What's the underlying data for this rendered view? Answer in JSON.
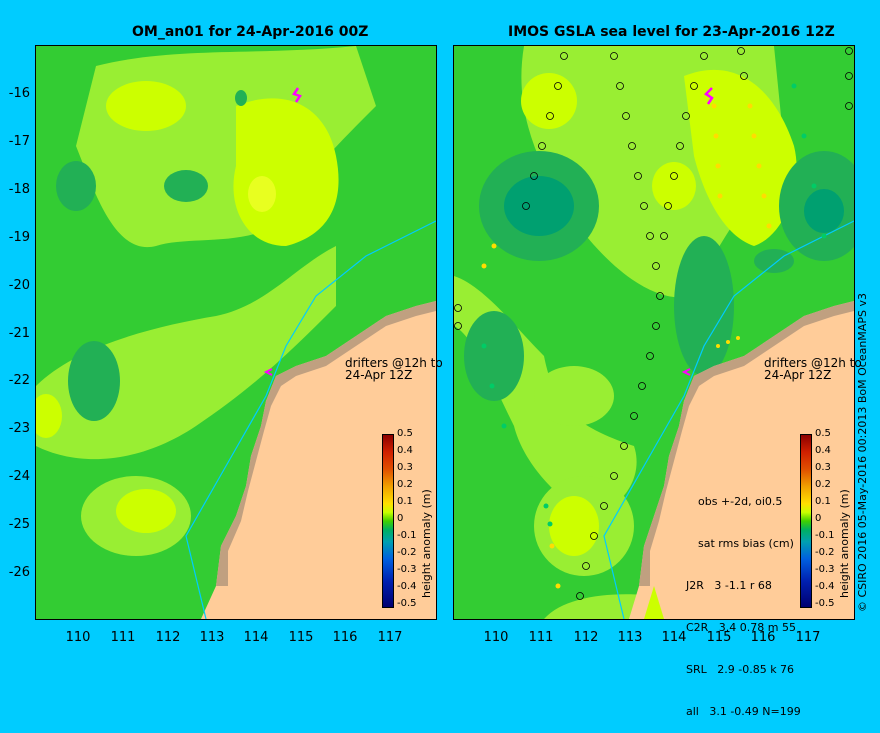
{
  "left_panel": {
    "title": "OM_an01 for 24-Apr-2016 00Z",
    "drifter_label_1": "drifters @12h to",
    "drifter_label_2": "24-Apr 12Z",
    "colorbar_title": "height anomaly (m)"
  },
  "right_panel": {
    "title": "IMOS GSLA sea level  for 23-Apr-2016 12Z",
    "drifter_label_1": "drifters @12h to",
    "drifter_label_2": "24-Apr 12Z",
    "colorbar_title": "height anomaly (m)",
    "stats": {
      "header1": "obs +-2d, oi0.5",
      "header2": "sat rms bias (cm)",
      "rows": [
        "J2R   3 -1.1 r 68",
        "C2R   3.4 0.78 m 55",
        "SRL   2.9 -0.85 k 76",
        "all   3.1 -0.49 N=199"
      ]
    }
  },
  "y_ticks": [
    "-16",
    "-17",
    "-18",
    "-19",
    "-20",
    "-21",
    "-22",
    "-23",
    "-24",
    "-25",
    "-26"
  ],
  "x_ticks": [
    "110",
    "111",
    "112",
    "113",
    "114",
    "115",
    "116",
    "117"
  ],
  "colorbar_ticks": [
    "0.5",
    "0.4",
    "0.3",
    "0.2",
    "0.1",
    "0",
    "-0.1",
    "-0.2",
    "-0.3",
    "-0.4",
    "-0.5"
  ],
  "credit": "© CSIRO 2016   05-May-2016 00:2013 BoM OceanMAPS v3",
  "colors": {
    "background": "#00ccff",
    "land": "#ffcc99",
    "coast_shelf": "#c0a080",
    "base_green": "#33cc33",
    "light_green": "#99ee33",
    "yellow": "#ccff00",
    "dark_green": "#22b055",
    "teal": "#00a070",
    "isobath": "#00ccff",
    "drifter": "#ff00ff"
  }
}
